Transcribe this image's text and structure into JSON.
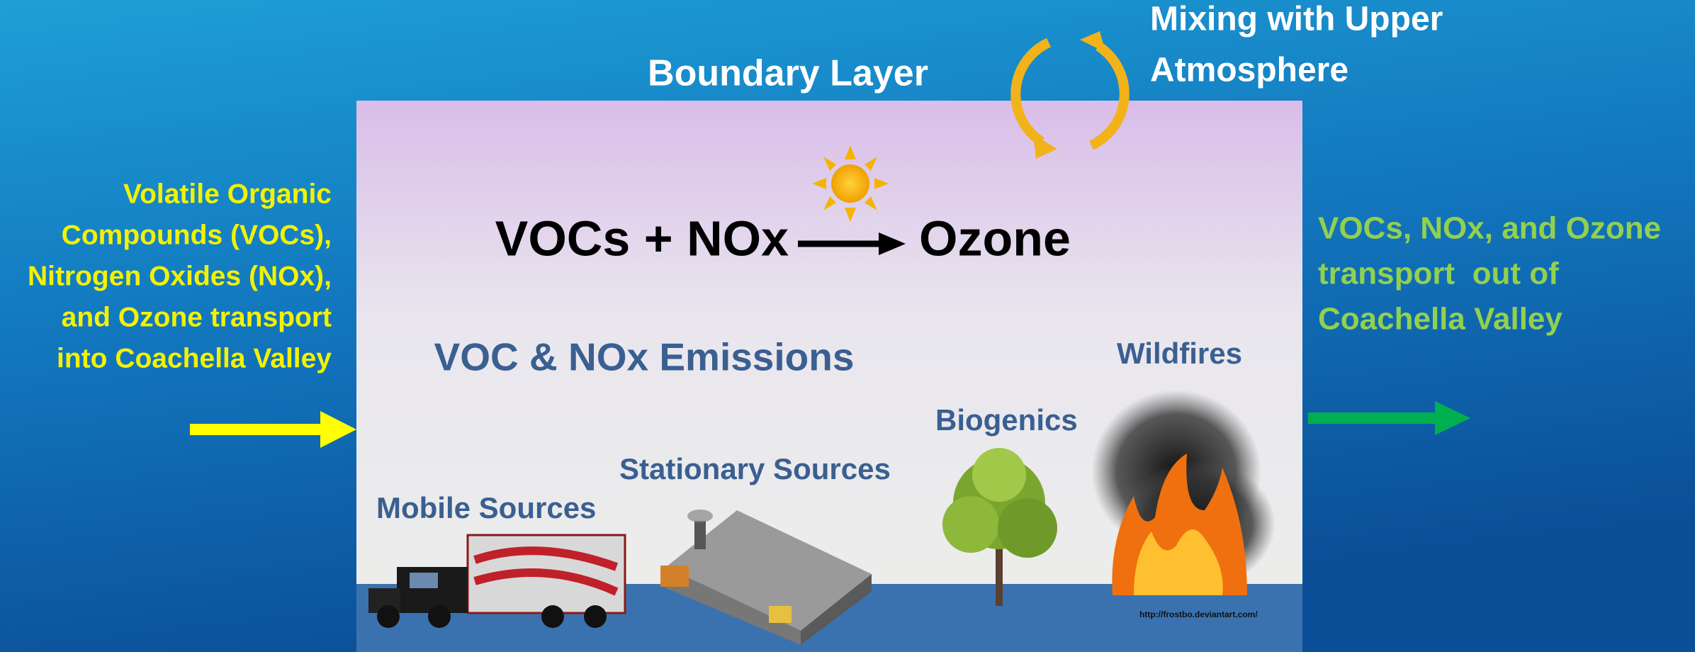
{
  "boundary_layer": "Boundary Layer",
  "mixing": [
    "Mixing with Upper",
    "Atmosphere"
  ],
  "inflow": [
    "Volatile Organic",
    "Compounds (VOCs),",
    "Nitrogen Oxides (NOx),",
    "and Ozone transport",
    "into Coachella Valley"
  ],
  "reaction": {
    "reactants": "VOCs + NOx",
    "product": "Ozone"
  },
  "emissions_title": "VOC & NOx Emissions",
  "sources": [
    "Mobile Sources",
    "Stationary Sources",
    "Biogenics",
    "Wildfires"
  ],
  "outflow": [
    "VOCs, NOx, and Ozone",
    "transport  out of",
    "Coachella Valley"
  ],
  "credit": "http://frostbo.deviantart.com/"
}
